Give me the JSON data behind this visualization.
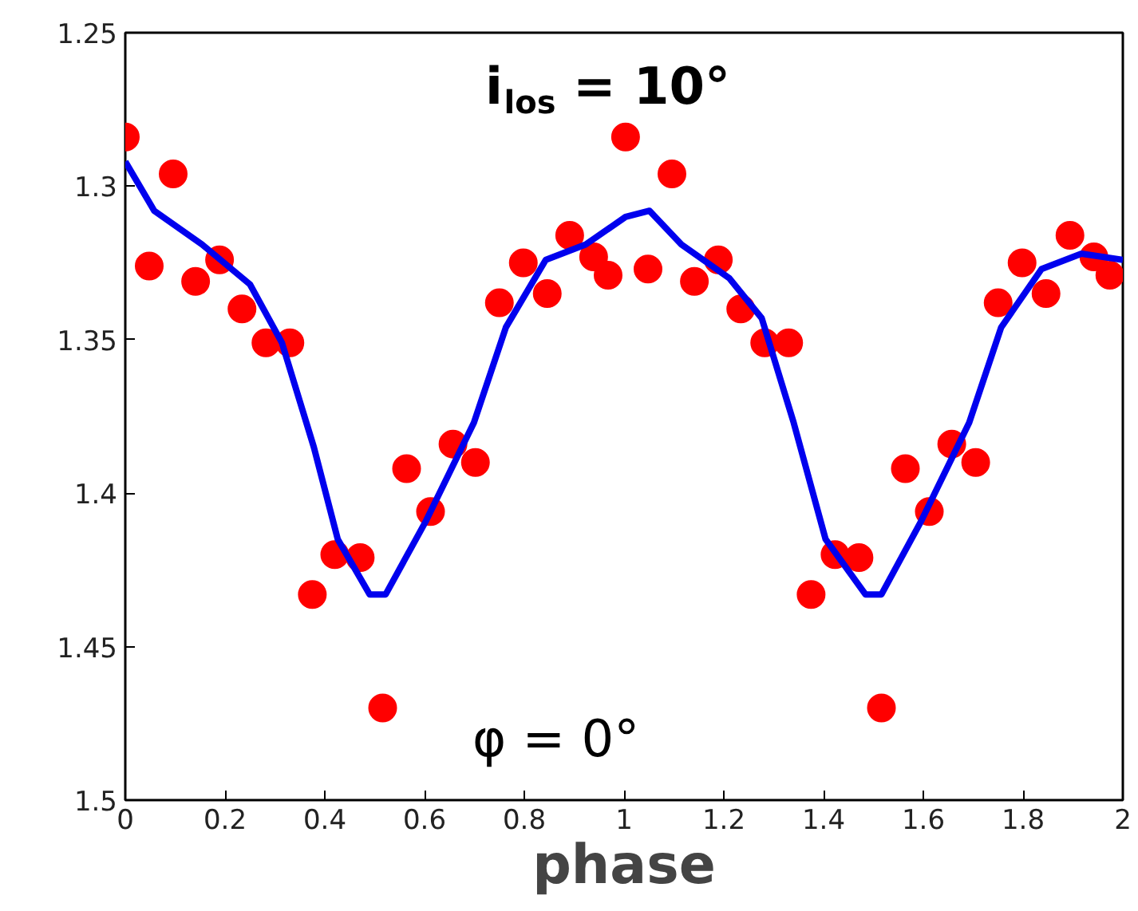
{
  "chart_data": {
    "type": "scatter",
    "xlabel": "phase",
    "xlim": [
      0,
      2
    ],
    "ylim": [
      1.5,
      1.25
    ],
    "xticks": [
      0,
      0.2,
      0.4,
      0.6,
      0.8,
      1,
      1.2,
      1.4,
      1.6,
      1.8,
      2
    ],
    "yticks": [
      1.25,
      1.3,
      1.35,
      1.4,
      1.45,
      1.5
    ],
    "grid": false,
    "annotations": [
      "i$_{los}$ = 10°",
      "φ =   0°"
    ],
    "series": [
      {
        "marker": "circle",
        "color": "#ff0000",
        "x": [
          0,
          0.048,
          0.096,
          0.141,
          0.189,
          0.234,
          0.282,
          0.33,
          0.375,
          0.42,
          0.471,
          0.516,
          0.564,
          0.612,
          0.657,
          0.702,
          0.75,
          0.798,
          0.846,
          0.891,
          0.939,
          0.968,
          1.003,
          1.048,
          1.096,
          1.141,
          1.189,
          1.234,
          1.282,
          1.33,
          1.375,
          1.423,
          1.471,
          1.516,
          1.564,
          1.612,
          1.657,
          1.705,
          1.75,
          1.798,
          1.846,
          1.894,
          1.942,
          1.974
        ],
        "values": [
          1.284,
          1.326,
          1.296,
          1.331,
          1.324,
          1.34,
          1.351,
          1.351,
          1.433,
          1.42,
          1.421,
          1.47,
          1.392,
          1.406,
          1.384,
          1.39,
          1.338,
          1.325,
          1.335,
          1.316,
          1.323,
          1.329,
          1.284,
          1.327,
          1.296,
          1.331,
          1.324,
          1.34,
          1.351,
          1.351,
          1.433,
          1.42,
          1.421,
          1.47,
          1.392,
          1.406,
          1.384,
          1.39,
          1.338,
          1.325,
          1.335,
          1.316,
          1.323,
          1.329
        ]
      },
      {
        "type": "line",
        "color": "#0000ee",
        "line_style": "solid",
        "x": [
          0,
          0.058,
          0.154,
          0.25,
          0.314,
          0.378,
          0.426,
          0.49,
          0.522,
          0.603,
          0.699,
          0.763,
          0.843,
          0.923,
          1.003,
          1.051,
          1.115,
          1.211,
          1.276,
          1.34,
          1.404,
          1.484,
          1.516,
          1.596,
          1.692,
          1.756,
          1.837,
          1.917,
          2.0
        ],
        "values": [
          1.292,
          1.308,
          1.319,
          1.332,
          1.351,
          1.385,
          1.415,
          1.433,
          1.433,
          1.409,
          1.377,
          1.346,
          1.324,
          1.319,
          1.31,
          1.308,
          1.319,
          1.33,
          1.343,
          1.377,
          1.415,
          1.433,
          1.433,
          1.409,
          1.377,
          1.346,
          1.327,
          1.322,
          1.324
        ]
      }
    ]
  }
}
